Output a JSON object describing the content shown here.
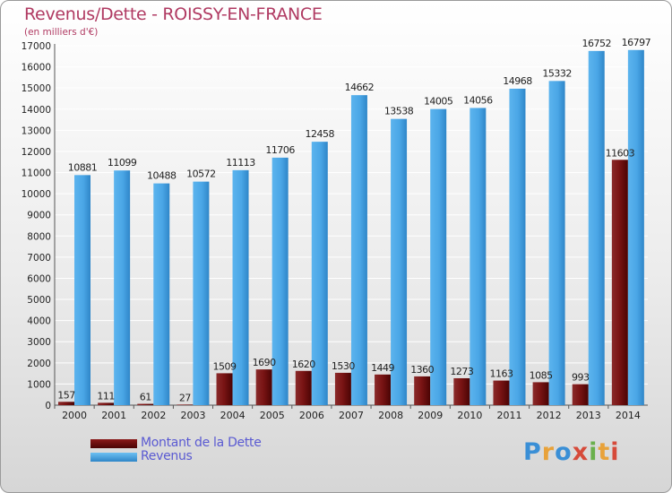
{
  "title": "Revenus/Dette - ROISSY-EN-FRANCE",
  "subtitle": "(en milliers d'€)",
  "logo": "Proxiti",
  "colors": {
    "dette": "#6b0a0a",
    "revenus": "#4aa6e6",
    "title": "#b03a62",
    "legend_text": "#5a5ad2"
  },
  "chart_data": {
    "type": "bar",
    "categories": [
      "2000",
      "2001",
      "2002",
      "2003",
      "2004",
      "2005",
      "2006",
      "2007",
      "2008",
      "2009",
      "2010",
      "2011",
      "2012",
      "2013",
      "2014"
    ],
    "series": [
      {
        "name": "Montant de la Dette",
        "values": [
          157,
          111,
          61,
          27,
          1509,
          1690,
          1620,
          1530,
          1449,
          1360,
          1273,
          1163,
          1085,
          993,
          11603
        ],
        "labels": [
          "157",
          "111",
          "61",
          "27",
          "1509",
          "1690",
          "1620",
          "1530",
          "1449",
          "1360",
          "1273",
          "1163",
          "1085",
          "993",
          "11603"
        ]
      },
      {
        "name": "Revenus",
        "values": [
          10881,
          11099,
          10488,
          10572,
          11113,
          11706,
          12458,
          14662,
          13538,
          14005,
          14056,
          14968,
          15332,
          16752,
          16797
        ],
        "labels": [
          "10881",
          "11099",
          "10488",
          "10572",
          "11113",
          "11706",
          "12458",
          "14662",
          "13538",
          "14005",
          "14056",
          "14968",
          "15332",
          "16752",
          "16797"
        ]
      }
    ],
    "yticks": [
      0,
      1000,
      2000,
      3000,
      4000,
      5000,
      6000,
      7000,
      8000,
      9000,
      10000,
      11000,
      12000,
      13000,
      14000,
      15000,
      16000,
      17000
    ],
    "ylim": [
      0,
      17000
    ],
    "xlabel": "",
    "ylabel": "",
    "legend": [
      {
        "label": "Montant de la Dette"
      },
      {
        "label": "Revenus"
      }
    ],
    "legend_position": "bottom-left"
  }
}
